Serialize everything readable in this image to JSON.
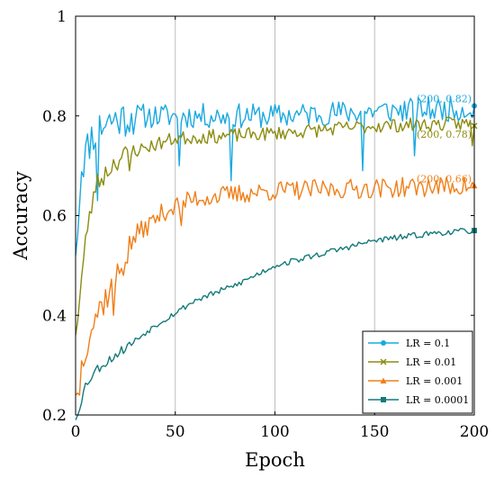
{
  "chart_data": {
    "type": "line",
    "xlabel": "Epoch",
    "ylabel": "Accuracy",
    "xlim": [
      0,
      200
    ],
    "ylim": [
      0.2,
      1.0
    ],
    "xticks": [
      "0",
      "50",
      "100",
      "150",
      "200"
    ],
    "yticks": [
      "0.2",
      "0.4",
      "0.6",
      "0.8",
      "1"
    ],
    "grid": "vertical",
    "legend_position": "bottom-right",
    "series": [
      {
        "name": "LR = 0.1",
        "color": "#1aa9e0",
        "marker": "circle",
        "start": 0.52,
        "end": 0.82,
        "anchors": [
          [
            0,
            0.52
          ],
          [
            3,
            0.7
          ],
          [
            8,
            0.76
          ],
          [
            15,
            0.79
          ],
          [
            30,
            0.8
          ],
          [
            60,
            0.8
          ],
          [
            100,
            0.8
          ],
          [
            150,
            0.81
          ],
          [
            200,
            0.815
          ]
        ],
        "noise": 0.025,
        "seed": 11,
        "dips": [
          [
            11,
            0.63
          ],
          [
            52,
            0.7
          ],
          [
            78,
            0.67
          ],
          [
            144,
            0.69
          ],
          [
            170,
            0.72
          ]
        ],
        "annotation": "(200, 0.82)"
      },
      {
        "name": "LR = 0.01",
        "color": "#8c8c12",
        "marker": "x",
        "start": 0.36,
        "end": 0.78,
        "anchors": [
          [
            0,
            0.36
          ],
          [
            5,
            0.55
          ],
          [
            10,
            0.66
          ],
          [
            20,
            0.71
          ],
          [
            30,
            0.73
          ],
          [
            50,
            0.755
          ],
          [
            100,
            0.765
          ],
          [
            150,
            0.78
          ],
          [
            200,
            0.785
          ]
        ],
        "noise": 0.014,
        "seed": 23,
        "dips": [
          [
            6,
            0.57
          ],
          [
            27,
            0.69
          ],
          [
            199,
            0.74
          ]
        ],
        "annotation": "(200, 0.78)"
      },
      {
        "name": "LR = 0.001",
        "color": "#f07f1a",
        "marker": "triangle",
        "start": 0.24,
        "end": 0.66,
        "anchors": [
          [
            0,
            0.24
          ],
          [
            5,
            0.34
          ],
          [
            10,
            0.4
          ],
          [
            20,
            0.47
          ],
          [
            30,
            0.56
          ],
          [
            45,
            0.61
          ],
          [
            60,
            0.635
          ],
          [
            100,
            0.65
          ],
          [
            150,
            0.655
          ],
          [
            200,
            0.66
          ]
        ],
        "noise": 0.02,
        "seed": 37,
        "dips": [
          [
            2,
            0.24
          ],
          [
            8,
            0.37
          ],
          [
            19,
            0.4
          ],
          [
            53,
            0.58
          ]
        ],
        "annotation": "(200, 0.66)"
      },
      {
        "name": "LR = 0.0001",
        "color": "#157a7a",
        "marker": "square",
        "start": 0.19,
        "end": 0.57,
        "anchors": [
          [
            0,
            0.19
          ],
          [
            5,
            0.26
          ],
          [
            10,
            0.29
          ],
          [
            20,
            0.32
          ],
          [
            40,
            0.38
          ],
          [
            60,
            0.43
          ],
          [
            80,
            0.46
          ],
          [
            100,
            0.5
          ],
          [
            130,
            0.53
          ],
          [
            150,
            0.55
          ],
          [
            180,
            0.565
          ],
          [
            200,
            0.57
          ]
        ],
        "noise": 0.006,
        "seed": 53,
        "dips": [],
        "annotation": ""
      }
    ]
  }
}
